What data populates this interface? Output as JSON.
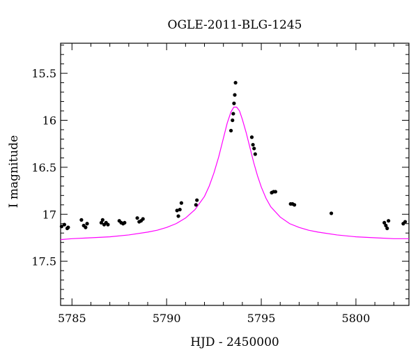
{
  "chart_data": {
    "type": "scatter",
    "title": "OGLE-2011-BLG-1245",
    "xlabel": "HJD - 2450000",
    "ylabel": "I magnitude",
    "xlim": [
      5784.4,
      5802.8
    ],
    "ylim": [
      17.97,
      15.18
    ],
    "y_inverted": true,
    "x_ticks": [
      5785,
      5790,
      5795,
      5800
    ],
    "x_tick_labels": [
      "5785",
      "5790",
      "5795",
      "5800"
    ],
    "y_ticks": [
      15.5,
      16,
      16.5,
      17,
      17.5
    ],
    "y_tick_labels": [
      "15.5",
      "16",
      "16.5",
      "17",
      "17.5"
    ],
    "grid": false,
    "colors": {
      "data": "#000000",
      "model": "#ff00ff"
    },
    "series": [
      {
        "kind": "points",
        "x": [
          5784.45,
          5784.6,
          5784.75,
          5784.8,
          5785.5,
          5785.62,
          5785.72,
          5785.8,
          5786.55,
          5786.62,
          5786.7,
          5786.8,
          5786.9,
          5787.5,
          5787.6,
          5787.7,
          5787.78,
          5788.45,
          5788.55,
          5788.65,
          5788.75,
          5790.55,
          5790.62,
          5790.7,
          5790.78,
          5791.55,
          5791.6,
          5793.4,
          5793.48,
          5793.52,
          5793.56,
          5793.6,
          5793.64,
          5794.5,
          5794.56,
          5794.62,
          5794.68,
          5795.55,
          5795.65,
          5795.75,
          5796.55,
          5796.65,
          5796.75,
          5798.7,
          5801.5,
          5801.58,
          5801.65,
          5801.72,
          5802.5,
          5802.6
        ],
        "y": [
          17.13,
          17.11,
          17.15,
          17.14,
          17.06,
          17.12,
          17.14,
          17.1,
          17.09,
          17.06,
          17.11,
          17.09,
          17.11,
          17.07,
          17.09,
          17.1,
          17.09,
          17.04,
          17.08,
          17.07,
          17.05,
          16.96,
          17.02,
          16.95,
          16.88,
          16.9,
          16.85,
          16.11,
          16.0,
          15.93,
          15.82,
          15.73,
          15.6,
          16.18,
          16.26,
          16.3,
          16.36,
          16.77,
          16.76,
          16.76,
          16.89,
          16.89,
          16.9,
          16.99,
          17.09,
          17.12,
          17.15,
          17.07,
          17.1,
          17.08
        ]
      },
      {
        "kind": "model-curve",
        "x": [
          5784.4,
          5785,
          5786,
          5787,
          5788,
          5789,
          5789.5,
          5790,
          5790.5,
          5791,
          5791.5,
          5792,
          5792.25,
          5792.5,
          5792.75,
          5793,
          5793.2,
          5793.4,
          5793.55,
          5793.7,
          5793.85,
          5794,
          5794.2,
          5794.4,
          5794.6,
          5794.8,
          5795,
          5795.25,
          5795.5,
          5796,
          5796.5,
          5797,
          5797.5,
          5798,
          5799,
          5800,
          5801,
          5802,
          5802.8
        ],
        "y": [
          17.27,
          17.26,
          17.25,
          17.24,
          17.22,
          17.19,
          17.17,
          17.14,
          17.1,
          17.04,
          16.95,
          16.81,
          16.7,
          16.56,
          16.39,
          16.19,
          16.03,
          15.91,
          15.86,
          15.86,
          15.9,
          15.99,
          16.13,
          16.29,
          16.45,
          16.59,
          16.71,
          16.83,
          16.92,
          17.03,
          17.1,
          17.14,
          17.17,
          17.19,
          17.22,
          17.24,
          17.25,
          17.26,
          17.26
        ]
      }
    ]
  }
}
